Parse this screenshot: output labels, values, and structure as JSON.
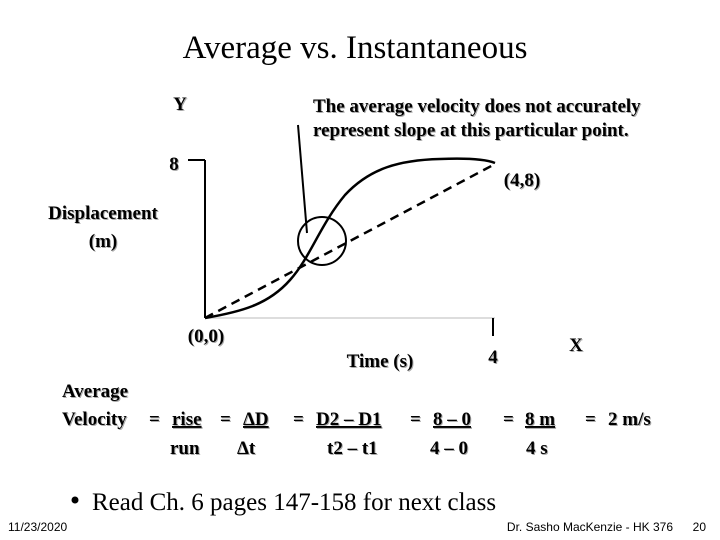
{
  "title": "Average vs. Instantaneous",
  "graph": {
    "y_label": "Y",
    "y_tick": "8",
    "x_label": "X",
    "x_tick": "4",
    "y_title": [
      "Displacement",
      "(m)"
    ],
    "x_title": "Time (s)",
    "origin": "(0,0)",
    "endpoint": "(4,8)"
  },
  "callout": [
    "The average velocity does not accurately",
    "represent slope at this particular point."
  ],
  "formula": {
    "lead": [
      "Average",
      "Velocity"
    ],
    "equals": "=",
    "numerators": [
      "rise",
      "ΔD",
      "D2 – D1",
      "8 – 0",
      "8 m"
    ],
    "denominators": [
      "run",
      "Δt",
      "t2 – t1",
      "4 – 0",
      "4 s"
    ],
    "result": "2 m/s"
  },
  "bullet": "Read Ch. 6 pages 147-158 for next class",
  "footer": {
    "date": "11/23/2020",
    "author": "Dr. Sasho MacKenzie - HK 376",
    "page": "20"
  }
}
